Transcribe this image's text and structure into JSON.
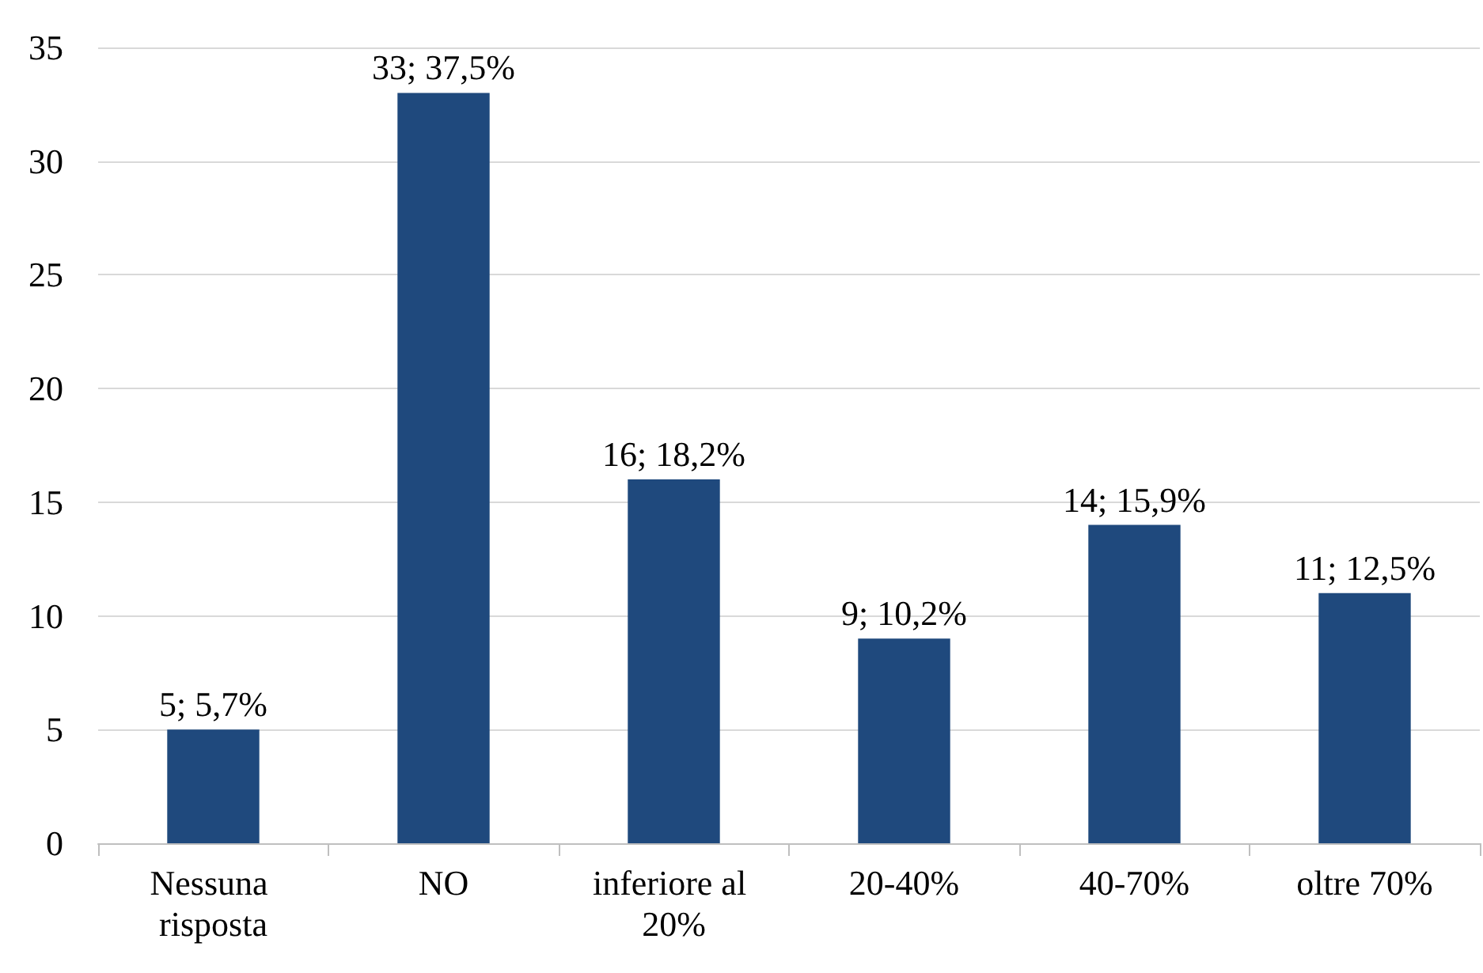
{
  "chart_data": {
    "type": "bar",
    "categories": [
      "Nessuna risposta",
      "NO",
      "inferiore al 20%",
      "20-40%",
      "40-70%",
      "oltre 70%"
    ],
    "values": [
      5,
      33,
      16,
      9,
      14,
      11
    ],
    "value_labels": [
      "5; 5,7%",
      "33; 37,5%",
      "16; 18,2%",
      "9; 10,2%",
      "14; 15,9%",
      "11; 12,5%"
    ],
    "color": "#1f497d",
    "ylim": [
      0,
      35
    ],
    "yticks": [
      0,
      5,
      10,
      15,
      20,
      25,
      30,
      35
    ],
    "grid": "y"
  }
}
